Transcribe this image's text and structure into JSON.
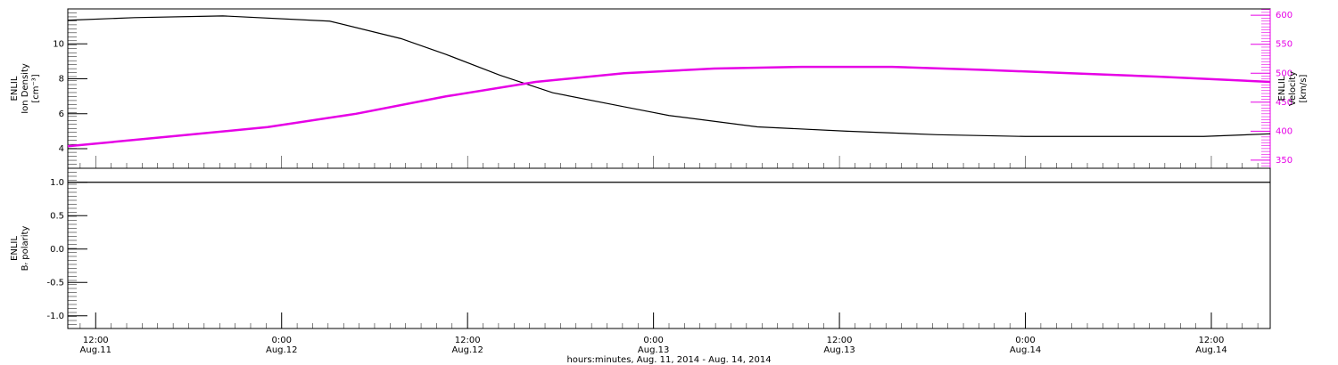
{
  "chart_data": [
    {
      "type": "line",
      "ylabel": [
        "ENLIL",
        "Ion Density",
        "[cm⁻³]"
      ],
      "y2label": [
        "ENLIL",
        "Velocity",
        "[km/s]"
      ],
      "xlim": [
        10.2,
        87.8
      ],
      "ylim": [
        2.88,
        12
      ],
      "yticks": [
        4,
        6,
        8,
        10
      ],
      "y2lim": [
        336,
        611
      ],
      "y2ticks": [
        350,
        400,
        450,
        500,
        550,
        600
      ],
      "series": [
        {
          "name": "Ion Density",
          "color": "#000000",
          "x": [
            10.2,
            14.5,
            20.2,
            27.1,
            31.7,
            34.6,
            38.1,
            41.5,
            46.1,
            49.0,
            54.7,
            60.5,
            66.3,
            72.0,
            77.8,
            83.5,
            87.8
          ],
          "values": [
            11.35,
            11.5,
            11.6,
            11.3,
            10.3,
            9.4,
            8.2,
            7.2,
            6.4,
            5.9,
            5.25,
            5.0,
            4.8,
            4.7,
            4.7,
            4.7,
            4.85
          ]
        },
        {
          "name": "Velocity",
          "color": "#e600e6",
          "axis": "y2",
          "x": [
            10.2,
            17.3,
            23.1,
            28.8,
            34.6,
            40.4,
            46.1,
            51.9,
            57.6,
            63.4,
            69.1,
            74.9,
            80.6,
            87.8
          ],
          "values": [
            374,
            392,
            407,
            430,
            460,
            485,
            500,
            508,
            511,
            511,
            506,
            500,
            494,
            485
          ]
        }
      ]
    },
    {
      "type": "line",
      "ylabel": [
        "ENLIL",
        "Bᵣ polarity"
      ],
      "xlim": [
        10.2,
        87.8
      ],
      "ylim": [
        -1.19,
        1.21
      ],
      "yticks": [
        {
          "value": 1,
          "label": "1.0"
        },
        0.5,
        {
          "value": 0,
          "label": "0.0"
        },
        -0.5,
        {
          "value": -1,
          "label": "-1.0"
        }
      ],
      "xticks": [
        {
          "value": 12,
          "label": "12:00"
        },
        {
          "value": 24,
          "label": "0:00"
        },
        {
          "value": 36,
          "label": "12:00"
        },
        {
          "value": 48,
          "label": "0:00"
        },
        {
          "value": 60,
          "label": "12:00"
        },
        {
          "value": 72,
          "label": "0:00"
        },
        {
          "value": 84,
          "label": "12:00"
        }
      ],
      "xtick_dates": [
        "Aug.11",
        "Aug.12",
        "Aug.12",
        "Aug.13",
        "Aug.13",
        "Aug.14",
        "Aug.14"
      ],
      "xlabel": "hours:minutes, Aug. 11, 2014 - Aug. 14, 2014",
      "series": [
        {
          "name": "Bᵣ polarity",
          "color": "#000000",
          "x": [
            10.2,
            16,
            22,
            28,
            34,
            40,
            46,
            52,
            58,
            64,
            70,
            76,
            82,
            87.8
          ],
          "values": [
            1,
            1,
            1,
            1,
            1,
            1,
            1,
            1,
            1,
            1,
            1,
            1,
            1,
            1
          ]
        }
      ]
    }
  ]
}
